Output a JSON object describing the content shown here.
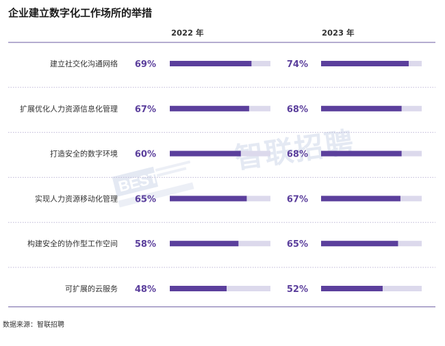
{
  "title": "企业建立数字化工作场所的举措",
  "source": "数据来源：智联招聘",
  "watermark_text": "智联招聘",
  "colors": {
    "bar": "#5b3f9c",
    "track": "#dcd9ec",
    "value_text": "#5b3f9c",
    "separator": "#bdb6d6",
    "top_line": "#6a5aa0"
  },
  "chart_data": {
    "type": "bar",
    "categories": [
      "建立社交化沟通网络",
      "扩展优化人力资源信息化管理",
      "打造安全的数字环境",
      "实现人力资源移动化管理",
      "构建安全的协作型工作空间",
      "可扩展的云服务"
    ],
    "series": [
      {
        "name": "2022 年",
        "values": [
          69,
          67,
          60,
          65,
          58,
          48
        ]
      },
      {
        "name": "2023 年",
        "values": [
          74,
          68,
          68,
          67,
          65,
          52
        ]
      }
    ],
    "value_labels": {
      "2022": [
        "69%",
        "67%",
        "60%",
        "65%",
        "58%",
        "48%"
      ],
      "2023": [
        "74%",
        "68%",
        "68%",
        "67%",
        "65%",
        "52%"
      ]
    },
    "xlim": [
      0,
      85
    ],
    "grid": false,
    "legend": "top"
  }
}
